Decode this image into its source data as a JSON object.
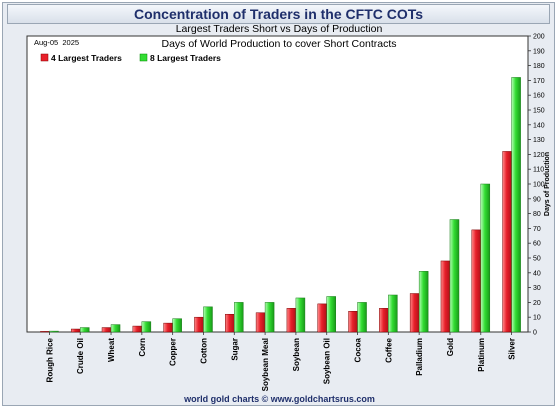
{
  "header": {
    "title": "Concentration of Traders in the CFTC COTs"
  },
  "footer": {
    "credit": "world gold charts © www.goldchartsrus.com"
  },
  "colors": {
    "four_largest": "#e8202a",
    "eight_largest": "#33dd33",
    "title_text": "#1f2f6b"
  },
  "chart_data": {
    "type": "bar",
    "title": "Largest Traders Short vs Days of Production",
    "subtitle": "Days of World Production to cover Short Contracts",
    "date_label": "Aug-05  2025",
    "ylabel": "Days of Production",
    "xlabel": "",
    "ylim": [
      0,
      200
    ],
    "ytick_step": 10,
    "y_axis_position": "right",
    "grid": false,
    "legend_position": "top-left",
    "categories": [
      "Rough Rice",
      "Crude Oil",
      "Wheat",
      "Corn",
      "Copper",
      "Cotton",
      "Sugar",
      "Soybean Meal",
      "Soybean",
      "Soybean Oil",
      "Cocoa",
      "Coffee",
      "Palladium",
      "Gold",
      "Platinum",
      "Silver"
    ],
    "series": [
      {
        "name": "4 Largest Traders",
        "color": "#e8202a",
        "values": [
          0.3,
          2,
          3,
          4,
          6,
          10,
          12,
          13,
          16,
          19,
          14,
          16,
          26,
          48,
          69,
          122
        ]
      },
      {
        "name": "8 Largest Traders",
        "color": "#33dd33",
        "values": [
          0.6,
          3,
          5,
          7,
          9,
          17,
          20,
          20,
          23,
          24,
          20,
          25,
          41,
          76,
          100,
          172
        ]
      }
    ]
  }
}
